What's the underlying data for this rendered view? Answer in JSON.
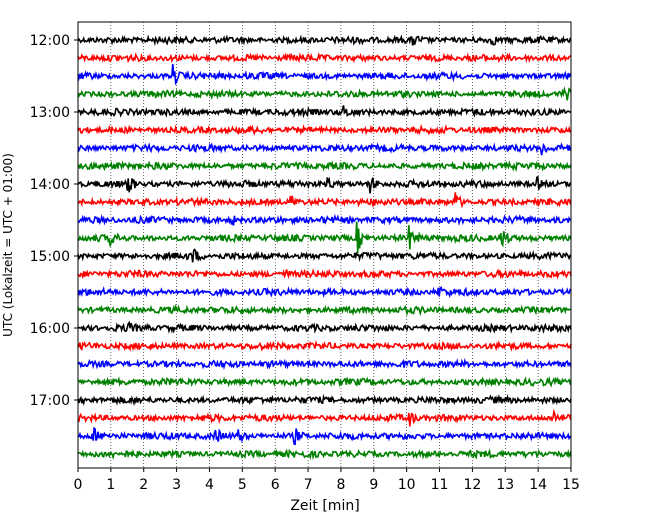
{
  "chart_data": {
    "type": "line",
    "title": "",
    "xlabel": "Zeit  [min]",
    "ylabel": "UTC (Lokalzeit = UTC + 01:00)",
    "xlim": [
      0,
      15
    ],
    "x_ticks": [
      0,
      1,
      2,
      3,
      4,
      5,
      6,
      7,
      8,
      9,
      10,
      11,
      12,
      13,
      14,
      15
    ],
    "x_tick_labels": [
      "0",
      "1",
      "2",
      "3",
      "4",
      "5",
      "6",
      "7",
      "8",
      "9",
      "10",
      "11",
      "12",
      "13",
      "14",
      "15"
    ],
    "y_tick_labels": [
      "12:00",
      "13:00",
      "14:00",
      "15:00",
      "16:00",
      "17:00"
    ],
    "y_tick_rows": [
      0,
      4,
      8,
      12,
      16,
      20
    ],
    "grid": {
      "x": true,
      "y": false,
      "style": "dotted"
    },
    "trace_interval_min": 15,
    "series": [
      {
        "start": "12:00",
        "color": "#000000"
      },
      {
        "start": "12:15",
        "color": "#ff0000"
      },
      {
        "start": "12:30",
        "color": "#0000ff"
      },
      {
        "start": "12:45",
        "color": "#008000"
      },
      {
        "start": "13:00",
        "color": "#000000"
      },
      {
        "start": "13:15",
        "color": "#ff0000"
      },
      {
        "start": "13:30",
        "color": "#0000ff"
      },
      {
        "start": "13:45",
        "color": "#008000"
      },
      {
        "start": "14:00",
        "color": "#000000"
      },
      {
        "start": "14:15",
        "color": "#ff0000"
      },
      {
        "start": "14:30",
        "color": "#0000ff"
      },
      {
        "start": "14:45",
        "color": "#008000"
      },
      {
        "start": "15:00",
        "color": "#000000"
      },
      {
        "start": "15:15",
        "color": "#ff0000"
      },
      {
        "start": "15:30",
        "color": "#0000ff"
      },
      {
        "start": "15:45",
        "color": "#008000"
      },
      {
        "start": "16:00",
        "color": "#000000"
      },
      {
        "start": "16:15",
        "color": "#ff0000"
      },
      {
        "start": "16:30",
        "color": "#0000ff"
      },
      {
        "start": "16:45",
        "color": "#008000"
      },
      {
        "start": "17:00",
        "color": "#000000"
      },
      {
        "start": "17:15",
        "color": "#ff0000"
      },
      {
        "start": "17:30",
        "color": "#0000ff"
      },
      {
        "start": "17:45",
        "color": "#008000"
      }
    ],
    "events": [
      {
        "row": 0,
        "t": 10.2,
        "amp": 0.35
      },
      {
        "row": 0,
        "t": 12.6,
        "amp": 0.3
      },
      {
        "row": 2,
        "t": 2.9,
        "amp": 0.75
      },
      {
        "row": 3,
        "t": 14.8,
        "amp": 0.5
      },
      {
        "row": 4,
        "t": 8.1,
        "amp": 0.35
      },
      {
        "row": 6,
        "t": 14.1,
        "amp": 0.55
      },
      {
        "row": 8,
        "t": 1.5,
        "amp": 1.0
      },
      {
        "row": 8,
        "t": 7.6,
        "amp": 0.4
      },
      {
        "row": 8,
        "t": 8.9,
        "amp": 0.55
      },
      {
        "row": 8,
        "t": 14.0,
        "amp": 0.35
      },
      {
        "row": 9,
        "t": 6.5,
        "amp": 0.4
      },
      {
        "row": 9,
        "t": 11.5,
        "amp": 0.6
      },
      {
        "row": 10,
        "t": 4.7,
        "amp": 0.3
      },
      {
        "row": 11,
        "t": 1.0,
        "amp": 0.4
      },
      {
        "row": 11,
        "t": 8.5,
        "amp": 1.1
      },
      {
        "row": 11,
        "t": 10.1,
        "amp": 0.7
      },
      {
        "row": 11,
        "t": 12.9,
        "amp": 0.75
      },
      {
        "row": 12,
        "t": 3.5,
        "amp": 0.45
      },
      {
        "row": 13,
        "t": 6.3,
        "amp": 0.3
      },
      {
        "row": 14,
        "t": 11.0,
        "amp": 0.3
      },
      {
        "row": 16,
        "t": 1.5,
        "amp": 0.35
      },
      {
        "row": 21,
        "t": 10.1,
        "amp": 0.45
      },
      {
        "row": 21,
        "t": 14.5,
        "amp": 0.4
      },
      {
        "row": 22,
        "t": 0.5,
        "amp": 0.45
      },
      {
        "row": 22,
        "t": 4.2,
        "amp": 0.45
      },
      {
        "row": 22,
        "t": 4.9,
        "amp": 0.4
      },
      {
        "row": 22,
        "t": 6.6,
        "amp": 0.5
      }
    ]
  }
}
